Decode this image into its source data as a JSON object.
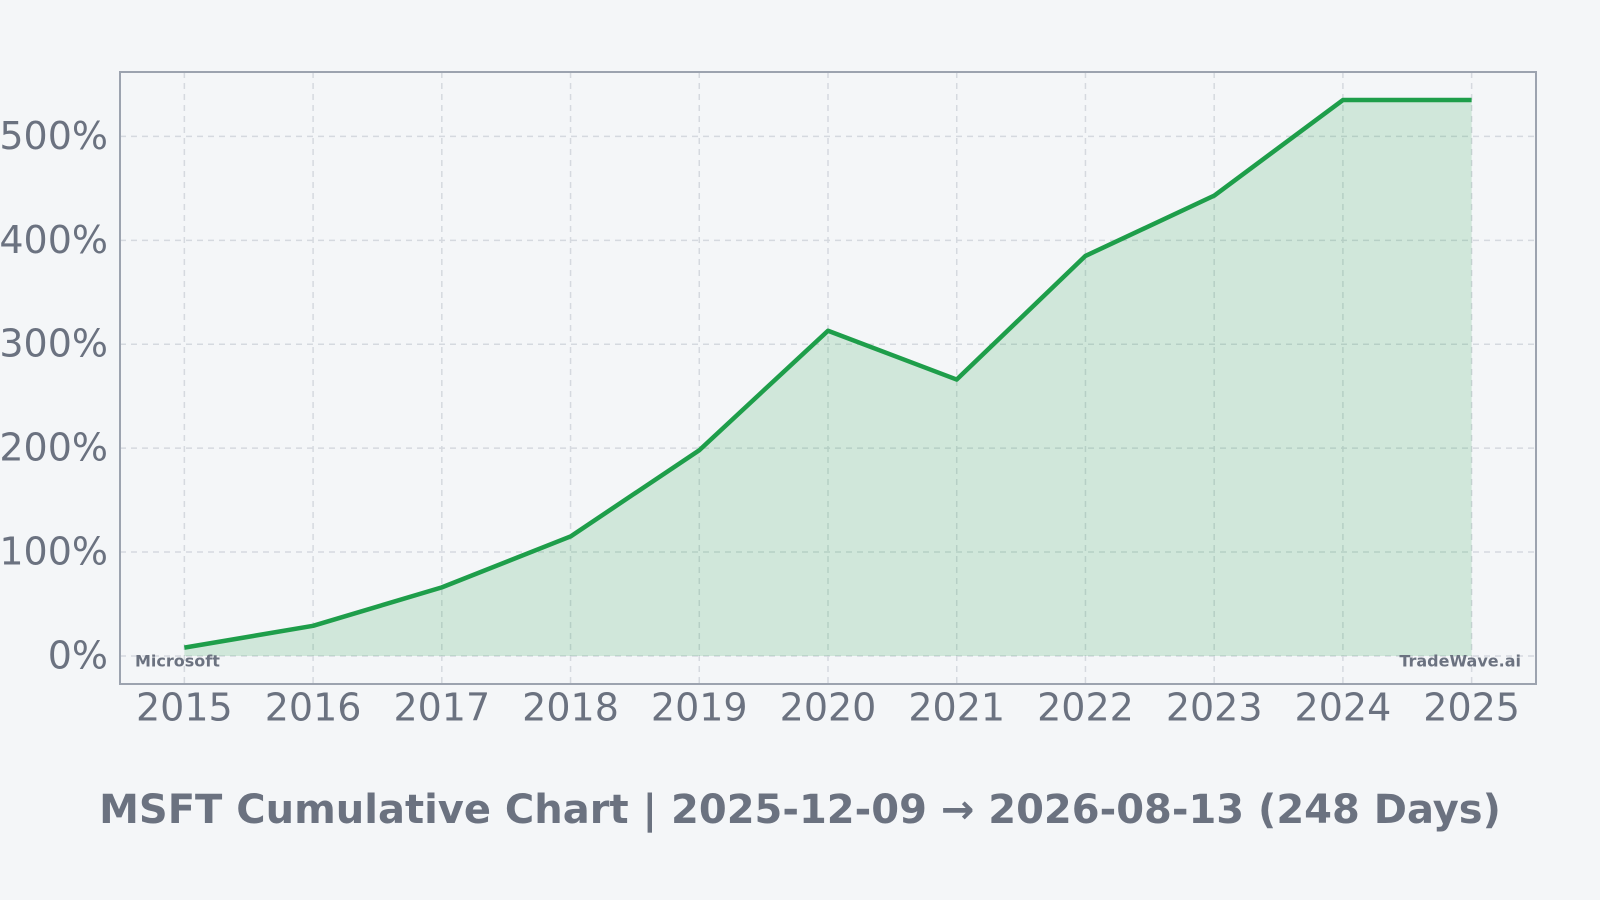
{
  "chart_data": {
    "type": "area",
    "title": "MSFT Cumulative Chart | 2025-12-09 → 2026-08-13 (248 Days)",
    "x": [
      2015,
      2016,
      2017,
      2018,
      2019,
      2020,
      2021,
      2022,
      2023,
      2024,
      2025
    ],
    "values": [
      8,
      29,
      66,
      115,
      198,
      313,
      266,
      385,
      443,
      535,
      535
    ],
    "color": "#1e9e4a",
    "xlim": [
      2014.5,
      2025.5
    ],
    "xticks": [
      2015,
      2016,
      2017,
      2018,
      2019,
      2020,
      2021,
      2022,
      2023,
      2024,
      2025
    ],
    "ylim": [
      -27,
      562
    ],
    "yticks": [
      {
        "value": 0,
        "label": "0%"
      },
      {
        "value": 100,
        "label": "100%"
      },
      {
        "value": 200,
        "label": "200%"
      },
      {
        "value": 300,
        "label": "300%"
      },
      {
        "value": 400,
        "label": "400%"
      },
      {
        "value": 500,
        "label": "500%"
      }
    ],
    "grid": true,
    "annotations": [
      "Microsoft",
      "TradeWave.ai"
    ]
  }
}
